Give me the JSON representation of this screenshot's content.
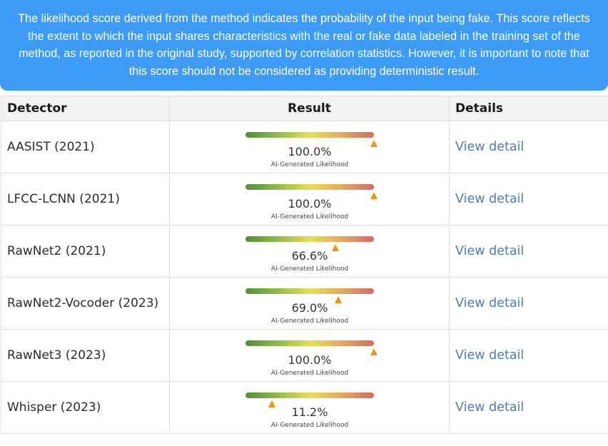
{
  "notice": {
    "text": "The likelihood score derived from the method indicates the probability of the input being fake. This score reflects the extent to which the input shares characteristics with the real or fake data labeled in the training set of the method, as reported in the original study, supported by correlation statistics. However, it is important to note that this score should not be considered as providing deterministic result."
  },
  "table": {
    "headers": {
      "detector": "Detector",
      "result": "Result",
      "details": "Details"
    },
    "caption": "AI-Generated Likelihood",
    "link_label": "View detail",
    "rows": [
      {
        "detector": "AASIST (2021)",
        "score": "100.0%",
        "likelihood": 1.0
      },
      {
        "detector": "LFCC-LCNN (2021)",
        "score": "100.0%",
        "likelihood": 1.0
      },
      {
        "detector": "RawNet2 (2021)",
        "score": "66.6%",
        "likelihood": 0.666
      },
      {
        "detector": "RawNet2-Vocoder (2023)",
        "score": "69.0%",
        "likelihood": 0.69
      },
      {
        "detector": "RawNet3 (2023)",
        "score": "100.0%",
        "likelihood": 1.0
      },
      {
        "detector": "Whisper (2023)",
        "score": "11.2%",
        "likelihood": 0.112
      }
    ]
  },
  "colors": {
    "notice_bg": "#3d9bf5",
    "marker": "#f0950c",
    "gradient": [
      "#4f8f3a",
      "#8fbb4a",
      "#e5df55",
      "#e6a860",
      "#d56a66"
    ],
    "link": "#4a7fb0"
  },
  "icons": {
    "marker": "triangle-up-icon"
  }
}
